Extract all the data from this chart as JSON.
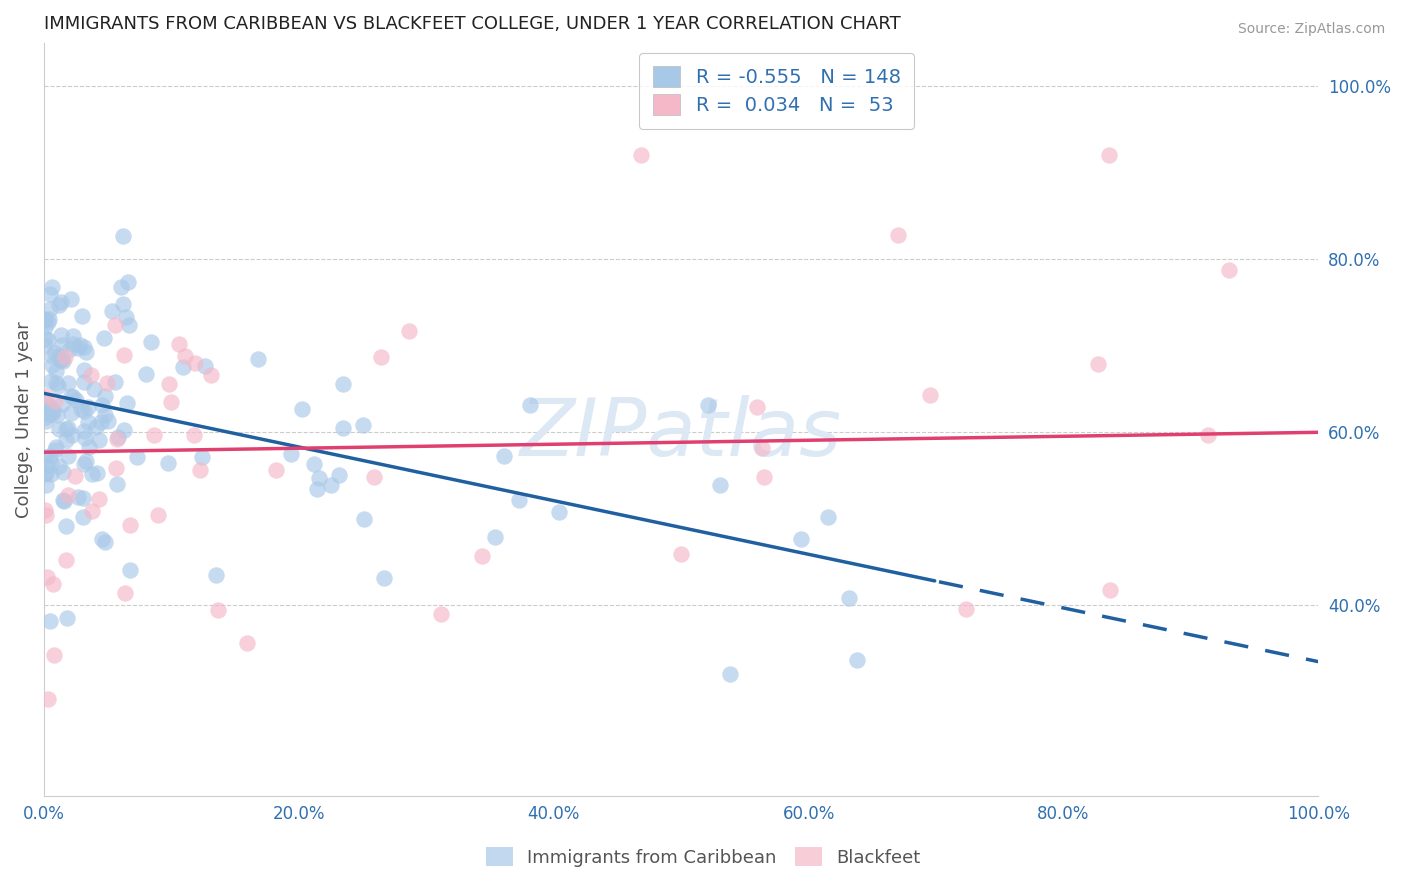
{
  "title": "IMMIGRANTS FROM CARIBBEAN VS BLACKFEET COLLEGE, UNDER 1 YEAR CORRELATION CHART",
  "source": "Source: ZipAtlas.com",
  "ylabel": "College, Under 1 year",
  "r_blue": -0.555,
  "n_blue": 148,
  "r_pink": 0.034,
  "n_pink": 53,
  "blue_color": "#a8c8e8",
  "pink_color": "#f4b8c8",
  "blue_line_color": "#2060a0",
  "pink_line_color": "#e04070",
  "watermark": "ZIPatlas",
  "watermark_color": "#dce8f4",
  "xlim": [
    0.0,
    1.0
  ],
  "ylim": [
    0.18,
    1.05
  ],
  "xtick_vals": [
    0.0,
    0.2,
    0.4,
    0.6,
    0.8,
    1.0
  ],
  "xtick_labels": [
    "0.0%",
    "20.0%",
    "40.0%",
    "60.0%",
    "80.0%",
    "100.0%"
  ],
  "ytick_vals": [
    0.4,
    0.6,
    0.8,
    1.0
  ],
  "ytick_labels": [
    "40.0%",
    "60.0%",
    "80.0%",
    "100.0%"
  ],
  "blue_line_x0": 0.0,
  "blue_line_y0": 0.645,
  "blue_line_x1": 1.0,
  "blue_line_y1": 0.335,
  "blue_line_solid_end": 0.7,
  "pink_line_x0": 0.0,
  "pink_line_y0": 0.577,
  "pink_line_x1": 1.0,
  "pink_line_y1": 0.6
}
